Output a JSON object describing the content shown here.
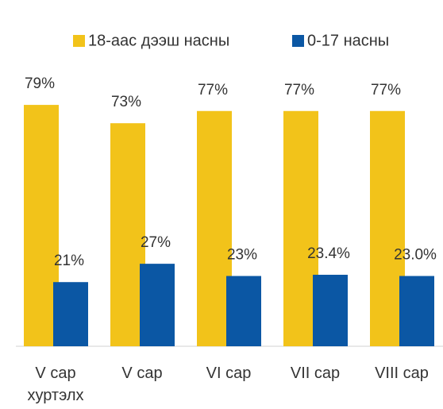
{
  "chart_data": {
    "type": "bar",
    "categories": [
      "V сар хуртэлх",
      "V сар",
      "VI сар",
      "VII сар",
      "VIII сар"
    ],
    "series": [
      {
        "name": "18-аас дээш насны",
        "color": "#f2c31a",
        "values": [
          79,
          73,
          77,
          77,
          77
        ],
        "value_labels": [
          "79%",
          "73%",
          "77%",
          "77%",
          "77%"
        ]
      },
      {
        "name": "0-17 насны",
        "color": "#0b57a4",
        "values": [
          21,
          27,
          23,
          23.4,
          23.0
        ],
        "value_labels": [
          "21%",
          "27%",
          "23%",
          "23.4%",
          "23.0%"
        ]
      }
    ],
    "ylim": [
      0,
      85
    ],
    "legend": "top"
  }
}
